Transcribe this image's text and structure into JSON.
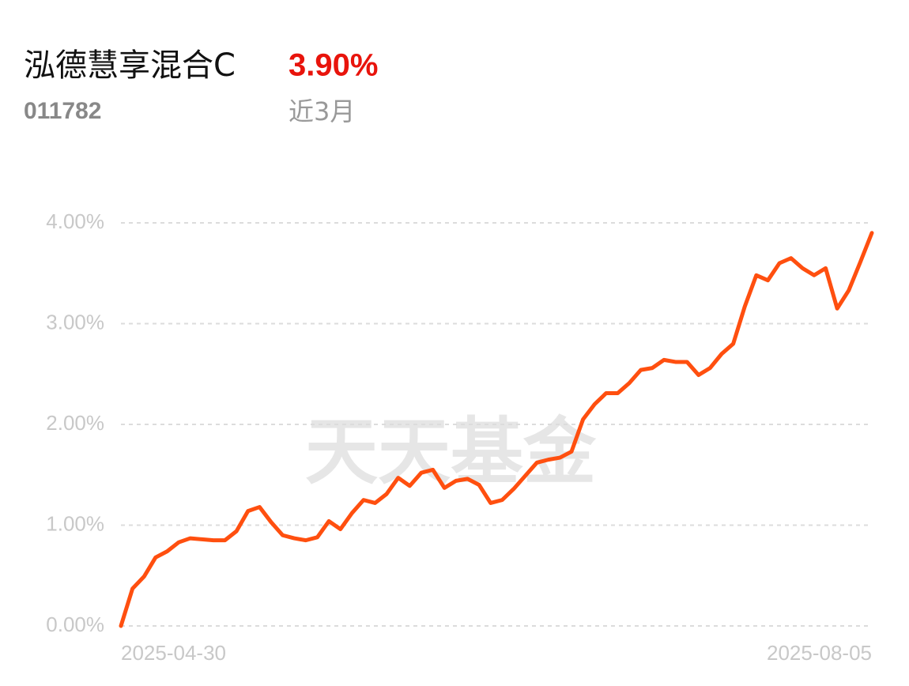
{
  "header": {
    "title": "泓德慧享混合C",
    "code": "011782",
    "return": "3.90%",
    "period": "近3月",
    "watermark": "天天基金"
  },
  "chart_data": {
    "type": "line",
    "categories": [
      "2025-04-30",
      null,
      null,
      null,
      null,
      null,
      null,
      null,
      null,
      null,
      null,
      null,
      null,
      null,
      null,
      null,
      null,
      null,
      null,
      null,
      null,
      null,
      null,
      null,
      null,
      null,
      null,
      null,
      null,
      null,
      null,
      null,
      null,
      null,
      null,
      null,
      null,
      null,
      null,
      null,
      null,
      null,
      null,
      null,
      null,
      null,
      null,
      null,
      null,
      null,
      null,
      null,
      null,
      null,
      null,
      null,
      null,
      null,
      null,
      null,
      null,
      null,
      null,
      null,
      null,
      "2025-08-05"
    ],
    "series": [
      {
        "color": "#ff4f0f",
        "values": [
          0,
          0.37,
          0.49,
          0.68,
          0.74,
          0.83,
          0.87,
          0.86,
          0.85,
          0.85,
          0.94,
          1.14,
          1.18,
          1.03,
          0.9,
          0.87,
          0.85,
          0.88,
          1.04,
          0.96,
          1.12,
          1.25,
          1.22,
          1.31,
          1.47,
          1.39,
          1.52,
          1.55,
          1.37,
          1.44,
          1.46,
          1.4,
          1.22,
          1.25,
          1.36,
          1.49,
          1.62,
          1.65,
          1.67,
          1.73,
          2.05,
          2.2,
          2.31,
          2.31,
          2.41,
          2.54,
          2.56,
          2.64,
          2.62,
          2.62,
          2.49,
          2.56,
          2.7,
          2.8,
          3.17,
          3.48,
          3.43,
          3.6,
          3.65,
          3.55,
          3.48,
          3.55,
          3.15,
          3.33,
          3.61,
          3.9
        ]
      }
    ],
    "ylim": [
      0,
      4
    ],
    "yticks": [
      {
        "value": 0,
        "label": "0.00%"
      },
      {
        "value": 1,
        "label": "1.00%"
      },
      {
        "value": 2,
        "label": "2.00%"
      },
      {
        "value": 3,
        "label": "3.00%"
      },
      {
        "value": 4,
        "label": "4.00%"
      }
    ],
    "grid": true
  }
}
